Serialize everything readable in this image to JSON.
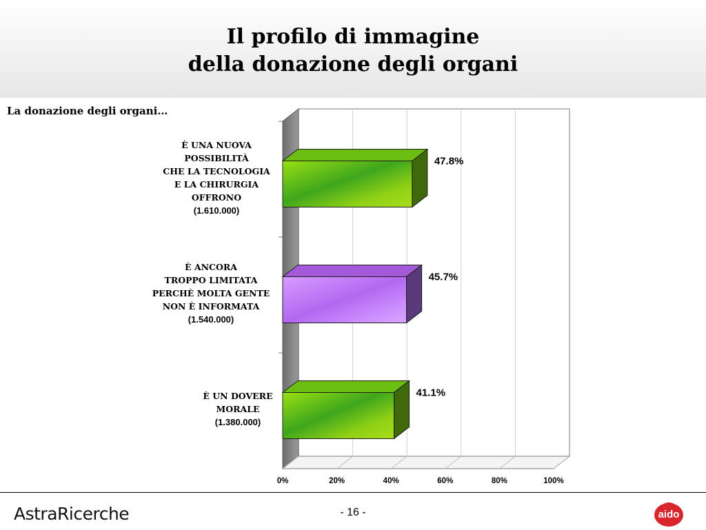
{
  "slide": {
    "title_lines": [
      "Il profilo di immagine",
      "della donazione degli organi"
    ],
    "subtitle": "La donazione degli organi…",
    "page_number": "- 16 -"
  },
  "footer": {
    "brand": "AstraRicerche",
    "logo_text": "aido",
    "logo_color": "#d9262c"
  },
  "chart_data": {
    "type": "bar",
    "orientation": "horizontal",
    "categories": [
      {
        "lines": [
          "È UNA NUOVA",
          "POSSIBILITÀ",
          "CHE LA TECNOLOGIA",
          "E LA CHIRURGIA",
          "OFFRONO"
        ],
        "amount": "(1.610.000)",
        "value": 47.8,
        "value_label": "47.8%",
        "color": "#8fd016"
      },
      {
        "lines": [
          "È ANCORA",
          "TROPPO LIMITATA",
          "PERCHÈ MOLTA GENTE",
          "NON È INFORMATA"
        ],
        "amount": "(1.540.000)",
        "value": 45.7,
        "value_label": "45.7%",
        "color": "#cc8fff"
      },
      {
        "lines": [
          "È UN DOVERE",
          "MORALE"
        ],
        "amount": "(1.380.000)",
        "value": 41.1,
        "value_label": "41.1%",
        "color": "#8fd016"
      }
    ],
    "xlim": [
      0,
      100
    ],
    "ticks": [
      "0%",
      "20%",
      "40%",
      "60%",
      "80%",
      "100%"
    ],
    "grid": true,
    "style": "3d"
  }
}
